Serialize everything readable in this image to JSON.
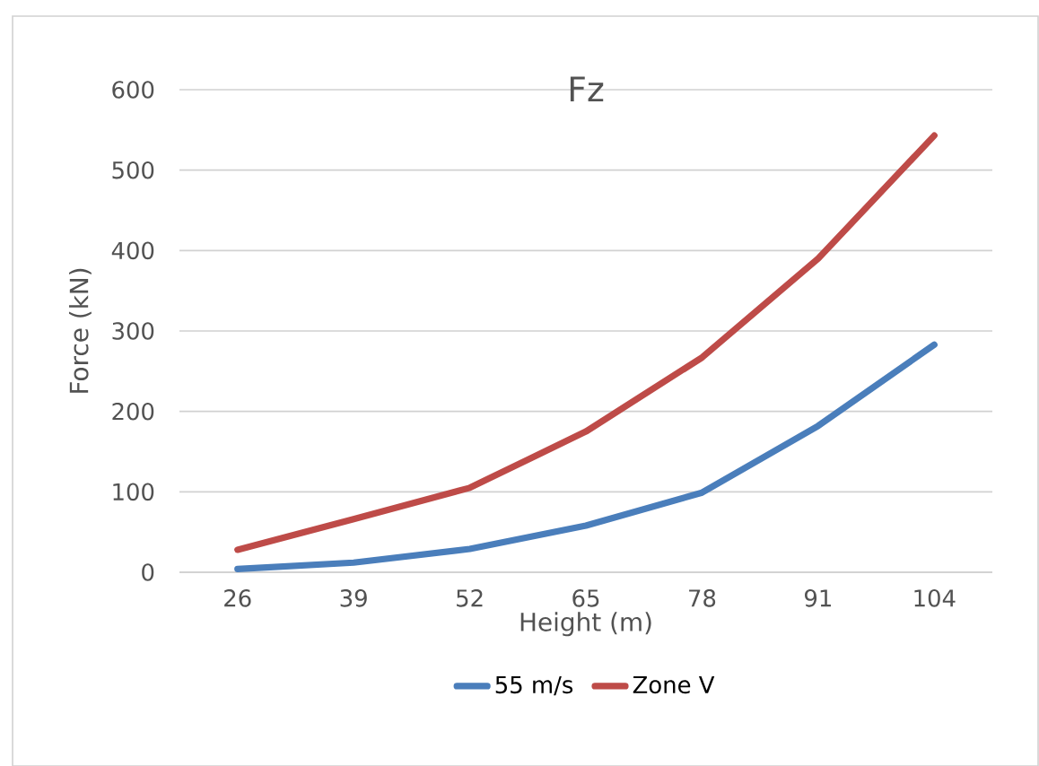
{
  "chart_data": {
    "type": "line",
    "title": "Fz",
    "xlabel": "Height (m)",
    "ylabel": "Force (kN)",
    "categories": [
      "26",
      "39",
      "52",
      "65",
      "78",
      "91",
      "104"
    ],
    "series": [
      {
        "name": "55 m/s",
        "color": "#4a7ebb",
        "values": [
          4,
          12,
          29,
          58,
          99,
          182,
          283
        ]
      },
      {
        "name": "Zone V",
        "color": "#be4b48",
        "values": [
          28,
          66,
          105,
          175,
          267,
          390,
          543
        ]
      }
    ],
    "ylim": [
      0,
      600
    ],
    "yticks": [
      0,
      100,
      200,
      300,
      400,
      500,
      600
    ],
    "grid": "y",
    "legend": "bottom",
    "marker": "none",
    "line_style": "solid"
  }
}
